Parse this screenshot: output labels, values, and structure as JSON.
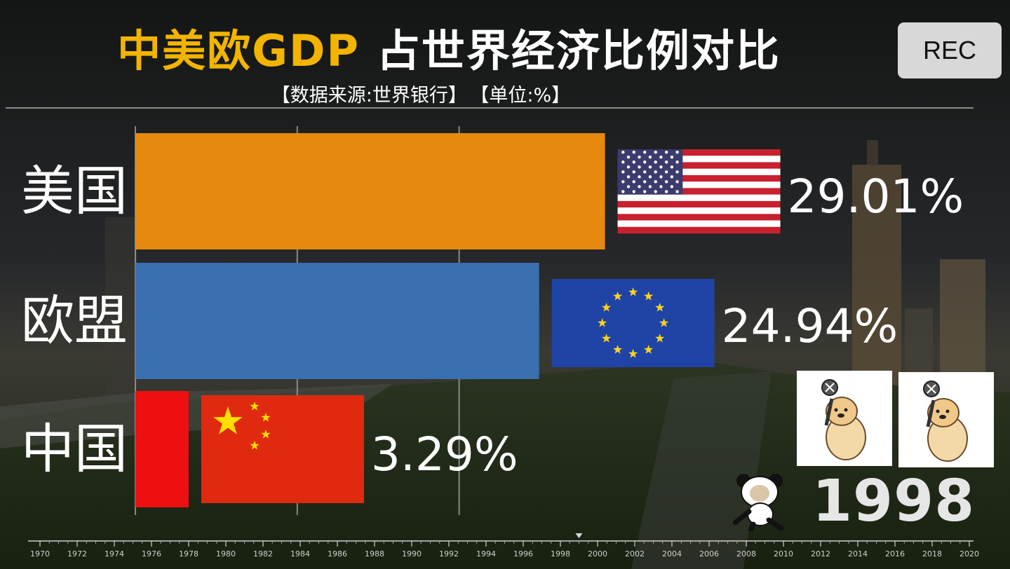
{
  "title": {
    "part1": "中美欧GDP",
    "part2": "占世界经济比例对比"
  },
  "subtitle": {
    "source": "【数据来源:世界银行】",
    "unit": "【单位:%】"
  },
  "rec_label": "REC",
  "current_year": "1998",
  "colors": {
    "title_accent": "#f2b400",
    "usa": "#e5890f",
    "eu": "#3a6fb0",
    "china": "#ee1010",
    "text": "#ffffff"
  },
  "chart_data": {
    "type": "bar",
    "orientation": "horizontal",
    "title": "中美欧GDP 占世界经济比例对比",
    "unit": "%",
    "categories": [
      "美国",
      "欧盟",
      "中国"
    ],
    "values": [
      29.01,
      24.94,
      3.29
    ],
    "value_labels": [
      "29.01%",
      "24.94%",
      "3.29%"
    ],
    "flags": [
      "us-flag",
      "eu-flag",
      "cn-flag"
    ],
    "xlim": [
      0,
      30
    ],
    "gridlines": [
      0,
      10,
      20
    ],
    "timeline": {
      "ticks": [
        "1970",
        "1972",
        "1974",
        "1976",
        "1978",
        "1980",
        "1982",
        "1984",
        "1986",
        "1988",
        "1990",
        "1992",
        "1994",
        "1996",
        "1998",
        "2000",
        "2002",
        "2004",
        "2006",
        "2008",
        "2010",
        "2012",
        "2014",
        "2016",
        "2018",
        "2020"
      ],
      "current": "1998"
    }
  }
}
